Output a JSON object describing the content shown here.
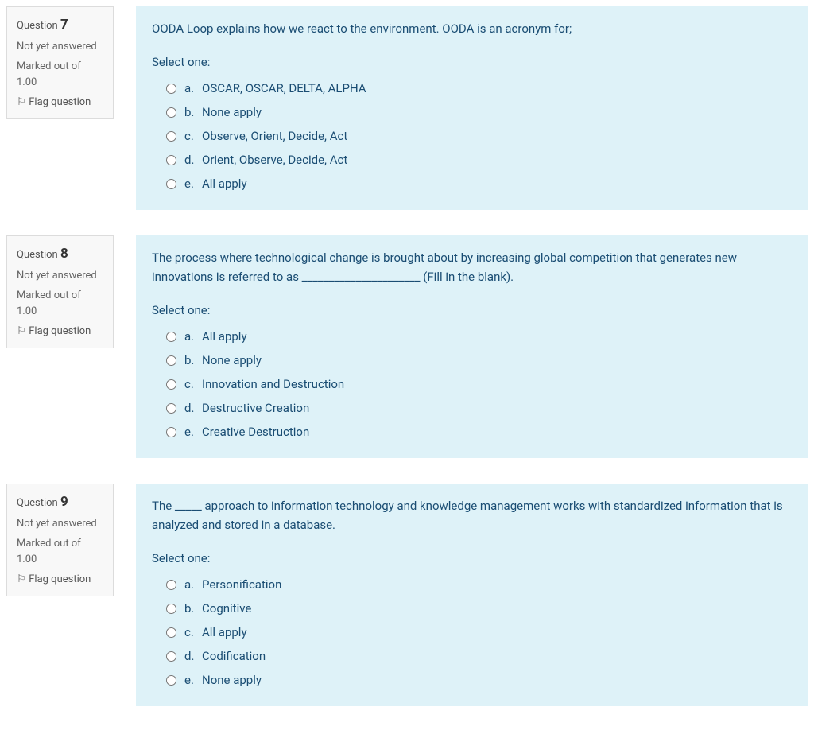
{
  "labels": {
    "question_prefix": "Question",
    "not_yet_answered": "Not yet answered",
    "marked_out_of": "Marked out of",
    "flag_question": "Flag question",
    "select_one": "Select one:"
  },
  "colors": {
    "content_bg": "#def2f8",
    "content_text": "#1a4d73",
    "panel_bg": "#f8f8f8",
    "panel_border": "#dcdcdc"
  },
  "questions": [
    {
      "number": "7",
      "status": "Not yet answered",
      "marks": "1.00",
      "text": "OODA Loop explains how we react to the environment. OODA is an acronym for;",
      "options": [
        {
          "letter": "a.",
          "text": "OSCAR, OSCAR, DELTA, ALPHA"
        },
        {
          "letter": "b.",
          "text": "None apply"
        },
        {
          "letter": "c.",
          "text": "Observe, Orient, Decide, Act"
        },
        {
          "letter": "d.",
          "text": "Orient, Observe, Decide, Act"
        },
        {
          "letter": "e.",
          "text": "All apply"
        }
      ]
    },
    {
      "number": "8",
      "status": "Not yet answered",
      "marks": "1.00",
      "text": "The process where technological change is brought about by increasing global competition that generates new innovations is referred to as ______________________ (Fill in the blank).",
      "options": [
        {
          "letter": "a.",
          "text": "All apply"
        },
        {
          "letter": "b.",
          "text": "None apply"
        },
        {
          "letter": "c.",
          "text": "Innovation and Destruction"
        },
        {
          "letter": "d.",
          "text": "Destructive Creation"
        },
        {
          "letter": "e.",
          "text": "Creative Destruction"
        }
      ]
    },
    {
      "number": "9",
      "status": "Not yet answered",
      "marks": "1.00",
      "text": "The _____ approach to information technology and knowledge management works with standardized information that is analyzed and stored in a database.",
      "options": [
        {
          "letter": "a.",
          "text": "Personification"
        },
        {
          "letter": "b.",
          "text": "Cognitive"
        },
        {
          "letter": "c.",
          "text": "All apply"
        },
        {
          "letter": "d.",
          "text": "Codification"
        },
        {
          "letter": "e.",
          "text": "None apply"
        }
      ]
    }
  ]
}
